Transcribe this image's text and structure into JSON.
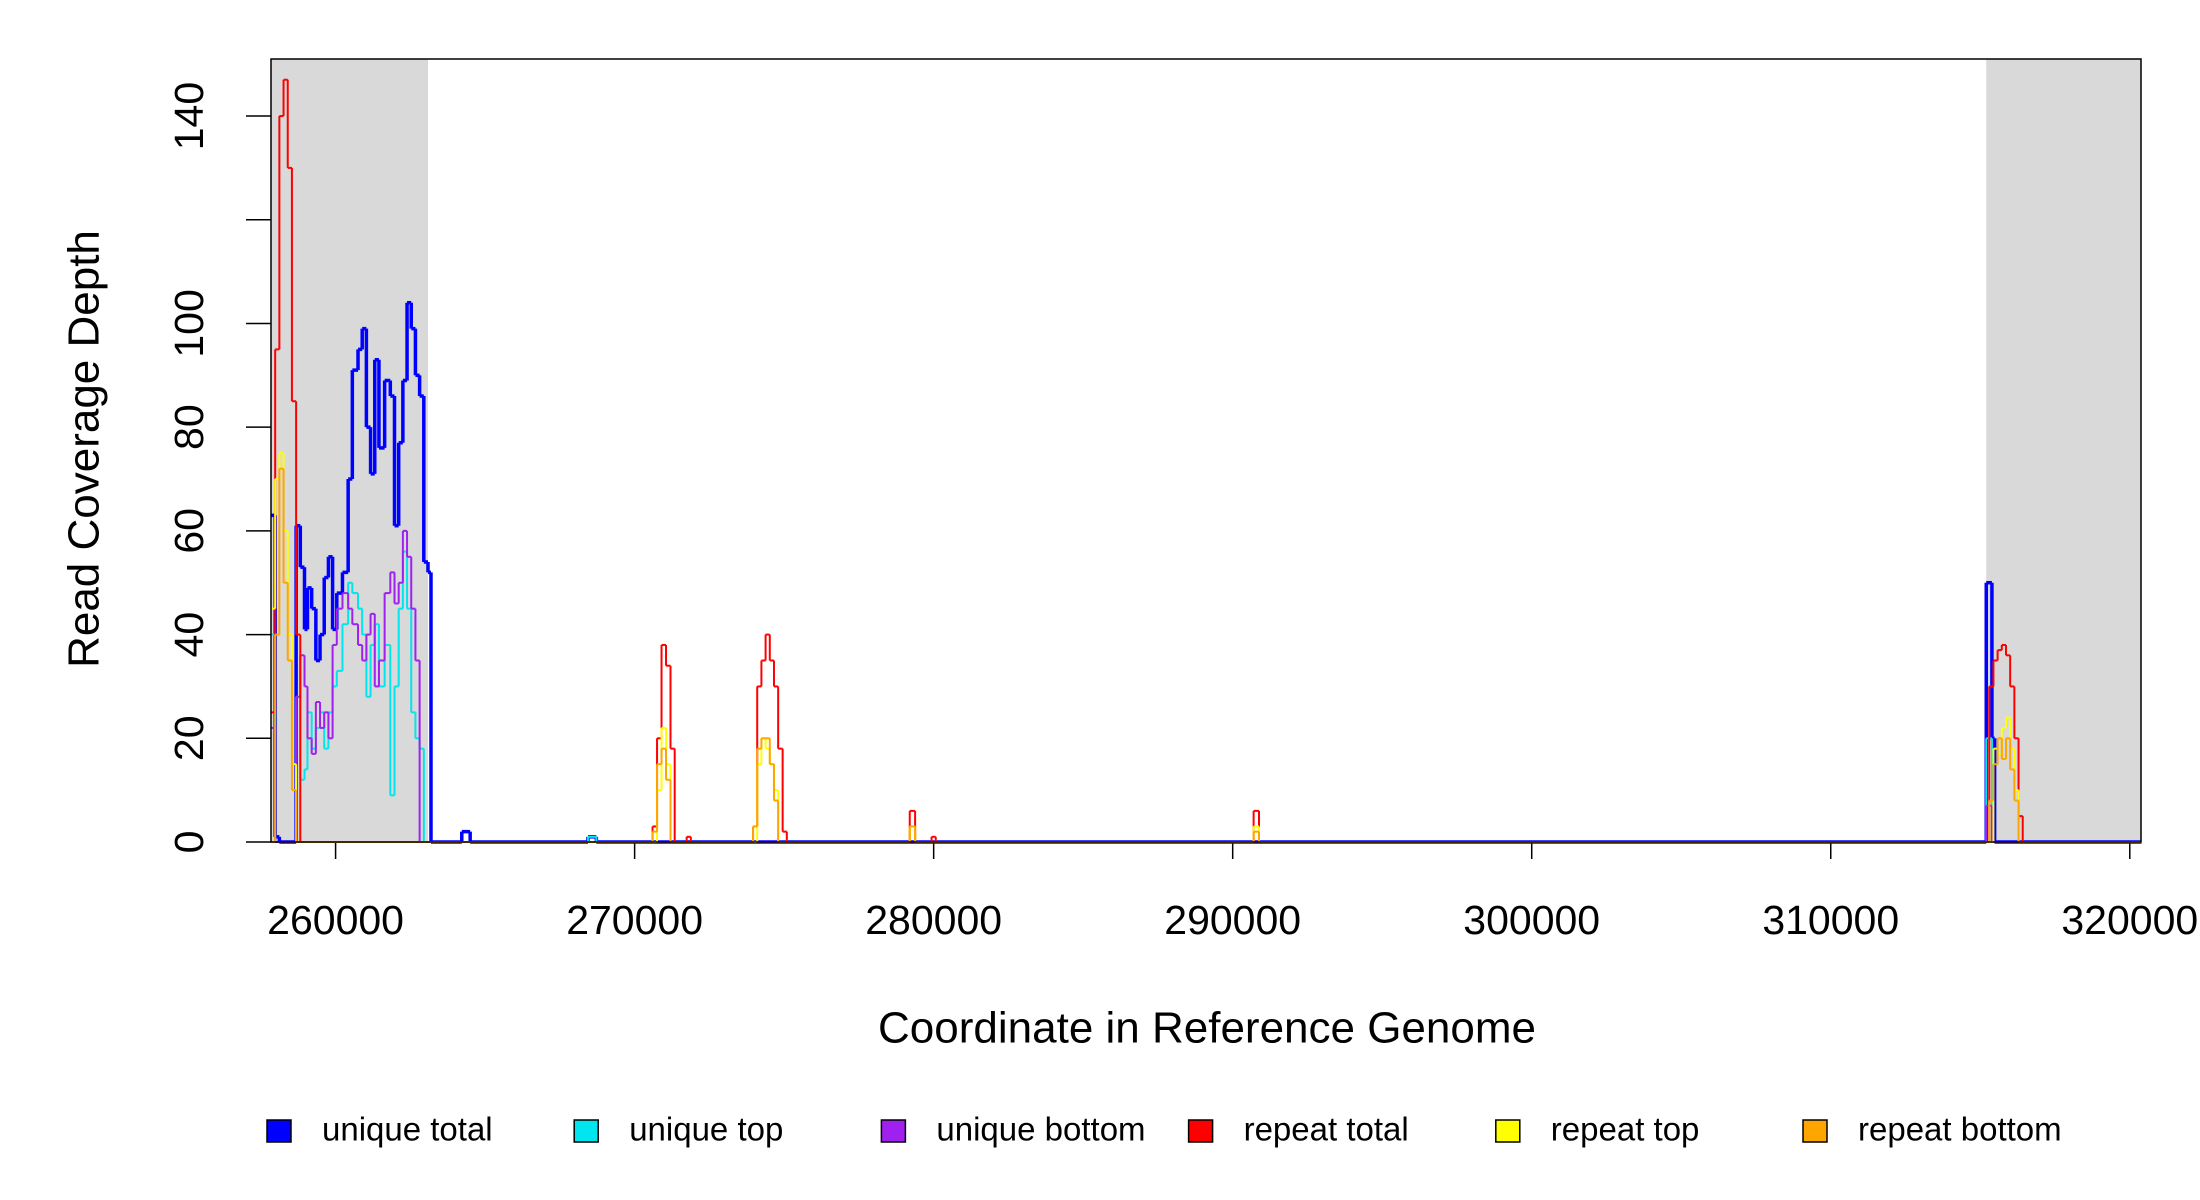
{
  "chart_data": {
    "type": "step",
    "xlabel": "Coordinate in Reference Genome",
    "ylabel": "Read Coverage Depth",
    "xlim": [
      257840,
      320375
    ],
    "ylim": [
      0,
      151
    ],
    "xticks": [
      260000,
      270000,
      280000,
      290000,
      300000,
      310000,
      320000
    ],
    "yticks": [
      0,
      20,
      40,
      60,
      80,
      100,
      {
        "value": 120,
        "label": null
      },
      140
    ],
    "shaded": [
      [
        257840,
        263090
      ],
      [
        315200,
        320375
      ]
    ],
    "shade_color": "#d9d9d9",
    "legend": "bottom",
    "series": [
      {
        "name": "unique total",
        "color": "#0000ff",
        "x": [
          257840,
          257980,
          258120,
          258680,
          258820,
          258960,
          259060,
          259200,
          259340,
          259480,
          259620,
          259760,
          259900,
          260040,
          260230,
          260420,
          260560,
          260750,
          260890,
          261030,
          261170,
          261310,
          261450,
          261640,
          261830,
          261970,
          262110,
          262250,
          262390,
          262530,
          262670,
          262810,
          262950,
          263090,
          263190,
          264220,
          264500,
          268440,
          268720,
          315200,
          315390,
          315480,
          320375
        ],
        "values": [
          63,
          1,
          0,
          61,
          53,
          41,
          49,
          45,
          35,
          40,
          51,
          55,
          41,
          48,
          52,
          70,
          91,
          95,
          99,
          80,
          71,
          93,
          76,
          89,
          86,
          61,
          77,
          89,
          104,
          99,
          90,
          86,
          54,
          52,
          0,
          2,
          0,
          1,
          0,
          50,
          20,
          0,
          0
        ]
      },
      {
        "name": "unique top",
        "color": "#00e5ee",
        "x": [
          257840,
          257980,
          258680,
          258820,
          258960,
          259060,
          259200,
          259340,
          259480,
          259620,
          259760,
          259900,
          260040,
          260230,
          260420,
          260560,
          260750,
          260890,
          261030,
          261170,
          261310,
          261450,
          261640,
          261830,
          261970,
          262110,
          262250,
          262390,
          262530,
          262670,
          262810,
          262950,
          268440,
          268720,
          315200,
          315390,
          320375
        ],
        "values": [
          40,
          0,
          28,
          12,
          14,
          25,
          18,
          22,
          25,
          18,
          25,
          30,
          33,
          42,
          50,
          48,
          45,
          40,
          28,
          38,
          42,
          30,
          38,
          9,
          30,
          45,
          56,
          45,
          25,
          20,
          18,
          0,
          1,
          0,
          20,
          0,
          0
        ]
      },
      {
        "name": "unique bottom",
        "color": "#a020f0",
        "x": [
          257840,
          257980,
          258680,
          258820,
          258960,
          259060,
          259200,
          259340,
          259480,
          259620,
          259760,
          259900,
          260040,
          260230,
          260420,
          260560,
          260750,
          260890,
          261030,
          261170,
          261310,
          261450,
          261640,
          261830,
          261970,
          262110,
          262250,
          262390,
          262530,
          262670,
          262810,
          315200,
          315390,
          320375
        ],
        "values": [
          22,
          0,
          28,
          36,
          30,
          20,
          17,
          27,
          22,
          25,
          20,
          38,
          45,
          48,
          45,
          42,
          38,
          35,
          40,
          44,
          30,
          35,
          48,
          52,
          46,
          50,
          60,
          55,
          45,
          35,
          0,
          7,
          0,
          0
        ]
      },
      {
        "name": "repeat total",
        "color": "#ff0000",
        "x": [
          257840,
          257980,
          258120,
          258260,
          258400,
          258540,
          258680,
          258820,
          270600,
          270750,
          270900,
          271050,
          271200,
          271340,
          271740,
          271880,
          273960,
          274100,
          274240,
          274380,
          274520,
          274660,
          274800,
          274950,
          275090,
          279200,
          279380,
          279930,
          280070,
          290700,
          290880,
          315300,
          315440,
          315580,
          315720,
          315860,
          316000,
          316140,
          316280,
          316420,
          320375
        ],
        "values": [
          25,
          95,
          140,
          147,
          130,
          85,
          40,
          0,
          3,
          20,
          38,
          34,
          18,
          0,
          1,
          0,
          3,
          30,
          35,
          40,
          35,
          30,
          18,
          2,
          0,
          6,
          0,
          1,
          0,
          6,
          0,
          30,
          35,
          37,
          38,
          36,
          30,
          20,
          5,
          0,
          0
        ]
      },
      {
        "name": "repeat top",
        "color": "#ffff00",
        "x": [
          257840,
          257980,
          258120,
          258260,
          258400,
          258540,
          258680,
          270750,
          270900,
          271050,
          271200,
          274100,
          274240,
          274380,
          274520,
          274660,
          274800,
          279200,
          279380,
          290700,
          290880,
          315440,
          315580,
          315720,
          315860,
          316000,
          316140,
          316280,
          320375
        ],
        "values": [
          45,
          70,
          75,
          60,
          40,
          15,
          0,
          10,
          22,
          15,
          0,
          15,
          20,
          18,
          15,
          10,
          0,
          3,
          0,
          3,
          0,
          18,
          17,
          22,
          24,
          18,
          10,
          0,
          0
        ]
      },
      {
        "name": "repeat bottom",
        "color": "#ffa500",
        "x": [
          257840,
          257980,
          258120,
          258260,
          258400,
          258540,
          258680,
          270600,
          270750,
          270900,
          271050,
          271200,
          273960,
          274100,
          274240,
          274380,
          274520,
          274660,
          274800,
          279200,
          279380,
          290700,
          290880,
          315300,
          315440,
          315580,
          315720,
          315860,
          316000,
          316140,
          316280,
          320375
        ],
        "values": [
          0,
          40,
          72,
          50,
          35,
          10,
          0,
          2,
          15,
          18,
          12,
          0,
          3,
          18,
          20,
          20,
          15,
          8,
          0,
          3,
          0,
          2,
          0,
          8,
          15,
          20,
          16,
          20,
          14,
          8,
          0,
          0
        ]
      }
    ]
  }
}
